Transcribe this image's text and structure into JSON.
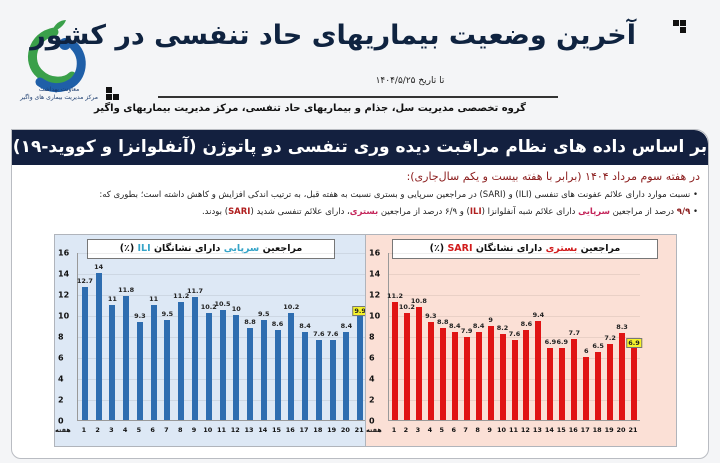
{
  "header": {
    "title": "آخرین وضعیت بیماریهای حاد تنفسی در کشور",
    "date": "تا تاریخ ۱۴۰۴/۵/۲۵",
    "subtitle": "گروه تخصصی مدیریت سل، جذام و بیماریهای حاد تنفسی، مرکز مدیریت بیماریهای واگیر",
    "logo_line1": "معاونت بهداشت",
    "logo_line2": "مرکز مدیریت بیماری های واگیر"
  },
  "banner": "بر اساس داده های نظام مراقبت دیده وری تنفسی دو پاتوژن (آنفلوانزا و کووید-۱۹)",
  "lead": "در هفته سوم مرداد ۱۴۰۴ (برابر با هفته بیست و یکم سال‌جاری):",
  "bullets": {
    "b1": "نسبت موارد دارای علائم عفونت های تنفسی (ILI) و (SARI) در مراجعین سرپایی و  بستری نسبت به هفته قبل، به ترتیب اندکی افزایش و کاهش داشته است؛ بطوری که:",
    "b2_val1": "۹/۹",
    "b2_t1": " درصد از مراجعین ",
    "b2_hl1": "سرپایی",
    "b2_t2": " دارای علائم شبه آنفلوانزا (",
    "b2_ili": "ILI",
    "b2_t3": ") و ۶/۹ درصد از مراجعین ",
    "b2_hl2": "بستری",
    "b2_t4": "، دارای علائم تنفسی شدید (",
    "b2_sari": "SARI",
    "b2_t5": ") بودند."
  },
  "chart_data": [
    {
      "type": "bar",
      "title": "مراجعین سرپایی دارای نشانگان ILI (٪)",
      "title_parts": {
        "pre": "مراجعین ",
        "accent": "سرپایی",
        "mid": " دارای نشانگان ",
        "tag": "ILI",
        "post": " (٪)"
      },
      "xlabel": "هفته",
      "ylabel": "",
      "ylim": [
        0,
        16
      ],
      "yticks": [
        0,
        2,
        4,
        6,
        8,
        10,
        12,
        14,
        16
      ],
      "categories": [
        "1",
        "2",
        "3",
        "4",
        "5",
        "6",
        "7",
        "8",
        "9",
        "10",
        "11",
        "12",
        "13",
        "14",
        "15",
        "16",
        "17",
        "18",
        "19",
        "20",
        "21"
      ],
      "values": [
        12.7,
        14,
        11,
        11.8,
        9.3,
        11,
        9.5,
        11.2,
        11.7,
        10.2,
        10.5,
        10,
        8.8,
        9.5,
        8.6,
        10.2,
        8.4,
        7.6,
        7.6,
        8.4,
        9.9
      ],
      "color": "#2e6db0",
      "background": "#dde8f5",
      "highlight_last": true,
      "grid": true
    },
    {
      "type": "bar",
      "title": "مراجعین بستری دارای نشانگان SARI (٪)",
      "title_parts": {
        "pre": "مراجعین ",
        "accent": "بستری",
        "mid": " دارای نشانگان ",
        "tag": "SARI",
        "post": " (٪)"
      },
      "xlabel": "هفته",
      "ylabel": "",
      "ylim": [
        0,
        16
      ],
      "yticks": [
        0,
        2,
        4,
        6,
        8,
        10,
        12,
        14,
        16
      ],
      "categories": [
        "1",
        "2",
        "3",
        "4",
        "5",
        "6",
        "7",
        "8",
        "9",
        "10",
        "11",
        "12",
        "13",
        "14",
        "15",
        "16",
        "17",
        "18",
        "19",
        "20",
        "21"
      ],
      "values": [
        11.2,
        10.2,
        10.8,
        9.3,
        8.8,
        8.4,
        7.9,
        8.4,
        9,
        8.2,
        7.6,
        8.6,
        9.4,
        6.9,
        6.9,
        7.7,
        6,
        6.5,
        7.2,
        8.3,
        6.9
      ],
      "color": "#e01414",
      "background": "#fbe0d6",
      "highlight_last": true,
      "grid": true
    }
  ]
}
